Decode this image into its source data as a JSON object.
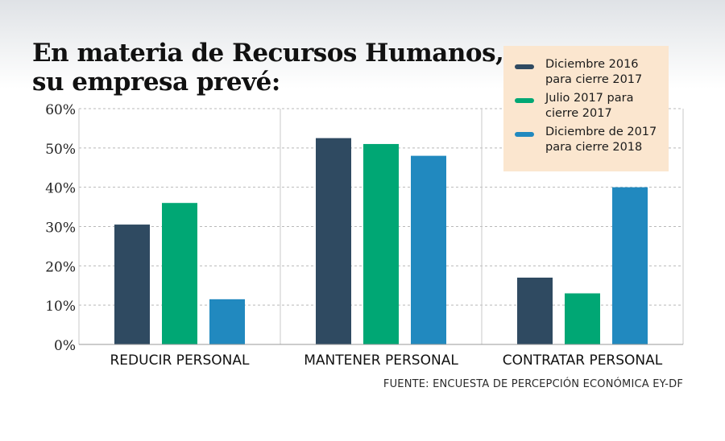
{
  "title_line1": "En materia de Recursos Humanos,",
  "title_line2": "su empresa prevé:",
  "source": "FUENTE: ENCUESTA DE PERCEPCIÓN ECONÓMICA EY-DF",
  "colors": {
    "series1": "#2f4a61",
    "series2": "#00a774",
    "series3": "#2189bf",
    "grid": "#b9b9b9",
    "legend_bg": "#fbe6cf"
  },
  "chart_data": {
    "type": "bar",
    "title": "En materia de Recursos Humanos, su empresa prevé:",
    "categories": [
      "REDUCIR PERSONAL",
      "MANTENER PERSONAL",
      "CONTRATAR PERSONAL"
    ],
    "series": [
      {
        "name": "Diciembre 2016 para cierre 2017",
        "values": [
          30.5,
          52.5,
          17
        ]
      },
      {
        "name": "Julio 2017 para cierre 2017",
        "values": [
          36,
          51,
          13
        ]
      },
      {
        "name": "Diciembre de 2017 para cierre 2018",
        "values": [
          11.5,
          48,
          40
        ]
      }
    ],
    "yticks": [
      "0%",
      "10%",
      "20%",
      "30%",
      "40%",
      "50%",
      "60%"
    ],
    "ylim": [
      0,
      60
    ],
    "grid": true,
    "legend_position": "top-right"
  }
}
